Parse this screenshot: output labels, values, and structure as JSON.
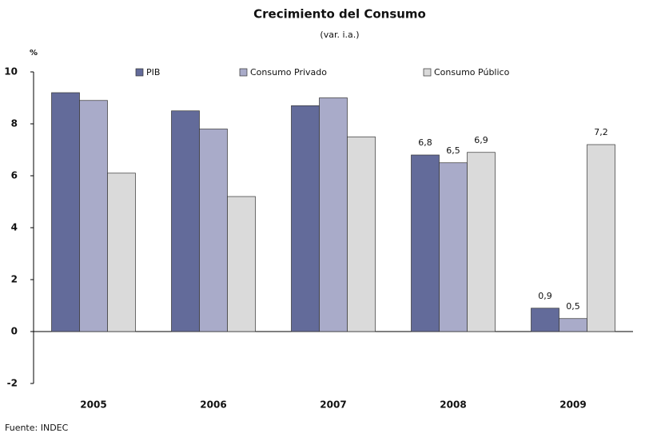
{
  "chart_data": {
    "type": "bar",
    "title": "Crecimiento del Consumo",
    "subtitle": "(var. i.a.)",
    "y_axis_label": "%",
    "source": "Fuente: INDEC",
    "categories": [
      "2005",
      "2006",
      "2007",
      "2008",
      "2009"
    ],
    "series": [
      {
        "name": "PIB",
        "color": "#636b9a",
        "values": [
          9.2,
          8.5,
          8.7,
          6.8,
          0.9
        ],
        "value_labels": [
          null,
          null,
          null,
          "6,8",
          "0,9"
        ]
      },
      {
        "name": "Consumo Privado",
        "color": "#a9abc9",
        "values": [
          8.9,
          7.8,
          9.0,
          6.5,
          0.5
        ],
        "value_labels": [
          null,
          null,
          null,
          "6,5",
          "0,5"
        ]
      },
      {
        "name": "Consumo Público",
        "color": "#dadada",
        "values": [
          6.1,
          5.2,
          7.5,
          6.9,
          7.2
        ],
        "value_labels": [
          null,
          null,
          null,
          "6,9",
          "7,2"
        ]
      }
    ],
    "ylim": [
      -2,
      10
    ],
    "yticks": [
      -2,
      0,
      2,
      4,
      6,
      8,
      10
    ],
    "grid": false,
    "legend": "top"
  }
}
